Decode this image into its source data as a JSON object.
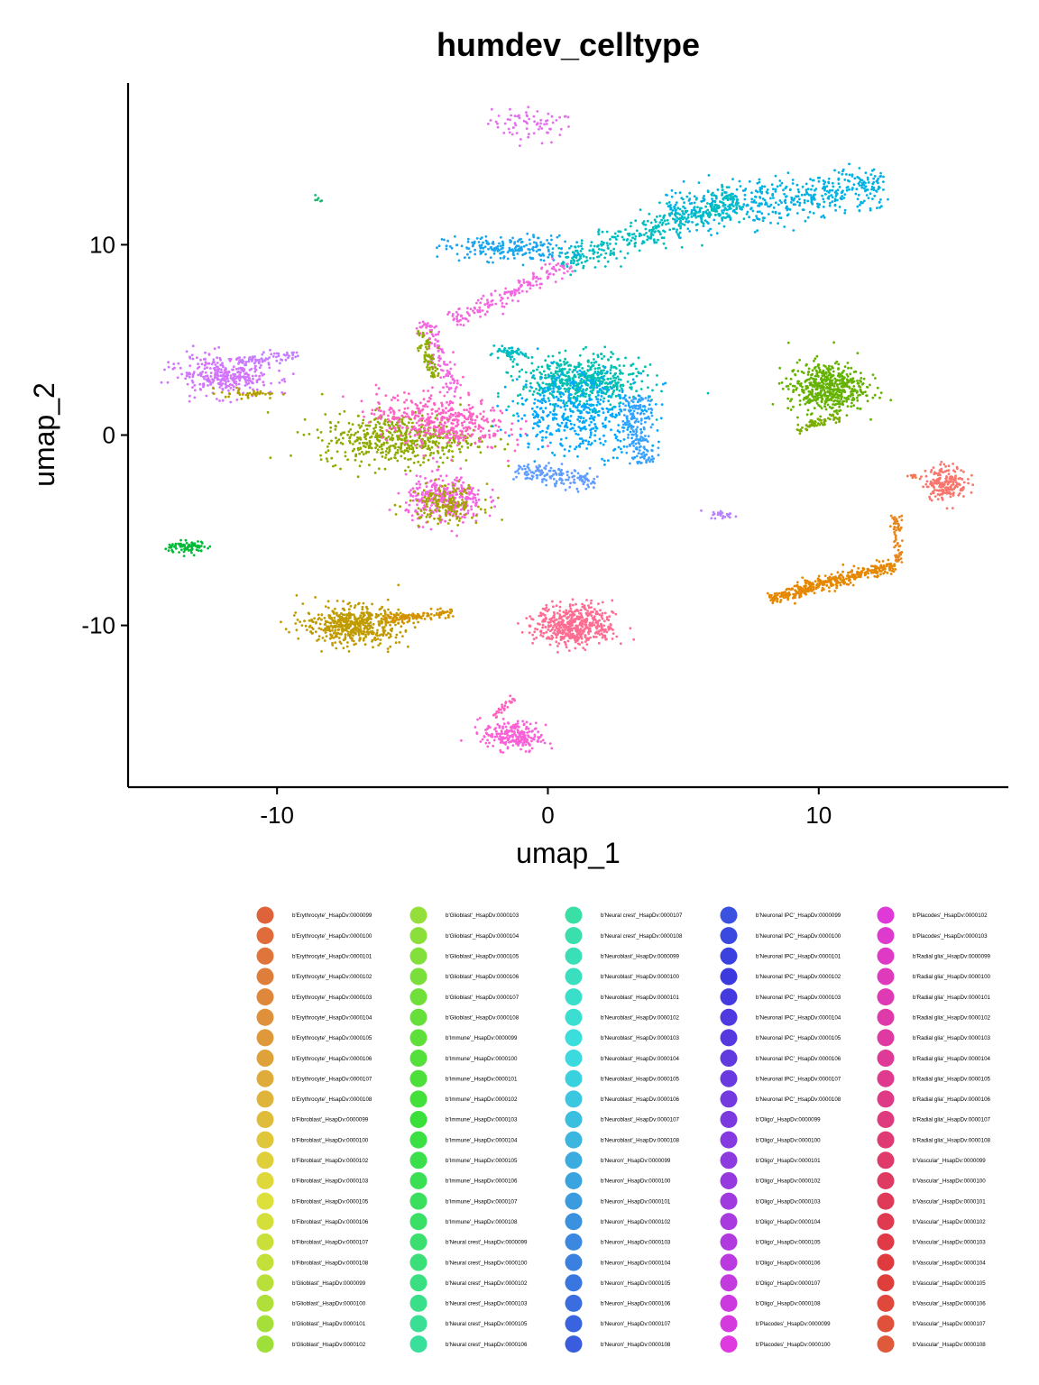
{
  "chart_data": {
    "type": "scatter",
    "title": "humdev_celltype",
    "xlabel": "umap_1",
    "ylabel": "umap_2",
    "xlim": [
      -15.5,
      17
    ],
    "ylim": [
      -18.5,
      18.5
    ],
    "x_ticks": [
      -10,
      0,
      10
    ],
    "x_tick_labels": [
      "-10",
      "0",
      "10"
    ],
    "y_ticks": [
      10,
      0,
      -10
    ],
    "y_tick_labels": [
      "10",
      "0",
      "-10"
    ],
    "grid": false,
    "legend_position": "bottom",
    "legend_columns": 5,
    "legend_rows": 22,
    "legend": [
      "b'Erythrocyte'_HsapDv:0000099",
      "b'Erythrocyte'_HsapDv:0000100",
      "b'Erythrocyte'_HsapDv:0000101",
      "b'Erythrocyte'_HsapDv:0000102",
      "b'Erythrocyte'_HsapDv:0000103",
      "b'Erythrocyte'_HsapDv:0000104",
      "b'Erythrocyte'_HsapDv:0000105",
      "b'Erythrocyte'_HsapDv:0000106",
      "b'Erythrocyte'_HsapDv:0000107",
      "b'Erythrocyte'_HsapDv:0000108",
      "b'Fibroblast'_HsapDv:0000099",
      "b'Fibroblast'_HsapDv:0000100",
      "b'Fibroblast'_HsapDv:0000102",
      "b'Fibroblast'_HsapDv:0000103",
      "b'Fibroblast'_HsapDv:0000105",
      "b'Fibroblast'_HsapDv:0000106",
      "b'Fibroblast'_HsapDv:0000107",
      "b'Fibroblast'_HsapDv:0000108",
      "b'Glioblast'_HsapDv:0000099",
      "b'Glioblast'_HsapDv:0000100",
      "b'Glioblast'_HsapDv:0000101",
      "b'Glioblast'_HsapDv:0000102",
      "b'Glioblast'_HsapDv:0000103",
      "b'Glioblast'_HsapDv:0000104",
      "b'Glioblast'_HsapDv:0000105",
      "b'Glioblast'_HsapDv:0000106",
      "b'Glioblast'_HsapDv:0000107",
      "b'Glioblast'_HsapDv:0000108",
      "b'Immune'_HsapDv:0000099",
      "b'Immune'_HsapDv:0000100",
      "b'Immune'_HsapDv:0000101",
      "b'Immune'_HsapDv:0000102",
      "b'Immune'_HsapDv:0000103",
      "b'Immune'_HsapDv:0000104",
      "b'Immune'_HsapDv:0000105",
      "b'Immune'_HsapDv:0000106",
      "b'Immune'_HsapDv:0000107",
      "b'Immune'_HsapDv:0000108",
      "b'Neural crest'_HsapDv:0000099",
      "b'Neural crest'_HsapDv:0000100",
      "b'Neural crest'_HsapDv:0000102",
      "b'Neural crest'_HsapDv:0000103",
      "b'Neural crest'_HsapDv:0000105",
      "b'Neural crest'_HsapDv:0000106",
      "b'Neural crest'_HsapDv:0000107",
      "b'Neural crest'_HsapDv:0000108",
      "b'Neuroblast'_HsapDv:0000099",
      "b'Neuroblast'_HsapDv:0000100",
      "b'Neuroblast'_HsapDv:0000101",
      "b'Neuroblast'_HsapDv:0000102",
      "b'Neuroblast'_HsapDv:0000103",
      "b'Neuroblast'_HsapDv:0000104",
      "b'Neuroblast'_HsapDv:0000105",
      "b'Neuroblast'_HsapDv:0000106",
      "b'Neuroblast'_HsapDv:0000107",
      "b'Neuroblast'_HsapDv:0000108",
      "b'Neuron'_HsapDv:0000099",
      "b'Neuron'_HsapDv:0000100",
      "b'Neuron'_HsapDv:0000101",
      "b'Neuron'_HsapDv:0000102",
      "b'Neuron'_HsapDv:0000103",
      "b'Neuron'_HsapDv:0000104",
      "b'Neuron'_HsapDv:0000105",
      "b'Neuron'_HsapDv:0000106",
      "b'Neuron'_HsapDv:0000107",
      "b'Neuron'_HsapDv:0000108",
      "b'Neuronal IPC'_HsapDv:0000099",
      "b'Neuronal IPC'_HsapDv:0000100",
      "b'Neuronal IPC'_HsapDv:0000101",
      "b'Neuronal IPC'_HsapDv:0000102",
      "b'Neuronal IPC'_HsapDv:0000103",
      "b'Neuronal IPC'_HsapDv:0000104",
      "b'Neuronal IPC'_HsapDv:0000105",
      "b'Neuronal IPC'_HsapDv:0000106",
      "b'Neuronal IPC'_HsapDv:0000107",
      "b'Neuronal IPC'_HsapDv:0000108",
      "b'Oligo'_HsapDv:0000099",
      "b'Oligo'_HsapDv:0000100",
      "b'Oligo'_HsapDv:0000101",
      "b'Oligo'_HsapDv:0000102",
      "b'Oligo'_HsapDv:0000103",
      "b'Oligo'_HsapDv:0000104",
      "b'Oligo'_HsapDv:0000105",
      "b'Oligo'_HsapDv:0000106",
      "b'Oligo'_HsapDv:0000107",
      "b'Oligo'_HsapDv:0000108",
      "b'Placodes'_HsapDv:0000099",
      "b'Placodes'_HsapDv:0000100",
      "b'Placodes'_HsapDv:0000102",
      "b'Placodes'_HsapDv:0000103",
      "b'Radial glia'_HsapDv:0000099",
      "b'Radial glia'_HsapDv:0000100",
      "b'Radial glia'_HsapDv:0000101",
      "b'Radial glia'_HsapDv:0000102",
      "b'Radial glia'_HsapDv:0000103",
      "b'Radial glia'_HsapDv:0000104",
      "b'Radial glia'_HsapDv:0000105",
      "b'Radial glia'_HsapDv:0000106",
      "b'Radial glia'_HsapDv:0000107",
      "b'Radial glia'_HsapDv:0000108",
      "b'Vascular'_HsapDv:0000099",
      "b'Vascular'_HsapDv:0000100",
      "b'Vascular'_HsapDv:0000101",
      "b'Vascular'_HsapDv:0000102",
      "b'Vascular'_HsapDv:0000103",
      "b'Vascular'_HsapDv:0000104",
      "b'Vascular'_HsapDv:0000105",
      "b'Vascular'_HsapDv:0000106",
      "b'Vascular'_HsapDv:0000107",
      "b'Vascular'_HsapDv:0000108"
    ],
    "clusters": [
      {
        "id": "placodes-top",
        "color": "#E36FEC",
        "shape": "ellipse",
        "center": [
          -0.6,
          16.3
        ],
        "spread": [
          1.4,
          0.8
        ],
        "angle": -10,
        "weight": 70
      },
      {
        "id": "tiny-top-left",
        "color": "#1DB870",
        "shape": "ellipse",
        "center": [
          -8.5,
          12.4
        ],
        "spread": [
          0.25,
          0.15
        ],
        "angle": 0,
        "weight": 6
      },
      {
        "id": "neuron-upper-band",
        "color": "#00B2E4",
        "shape": "segment",
        "from": [
          4.5,
          11.5
        ],
        "to": [
          12.5,
          13.2
        ],
        "width": 1.4,
        "weight": 520
      },
      {
        "id": "neuroblast-upper-band",
        "color": "#00BDC0",
        "shape": "segment",
        "from": [
          0.5,
          9.0
        ],
        "to": [
          7.0,
          12.5
        ],
        "width": 1.0,
        "weight": 380
      },
      {
        "id": "neuron-upper-left",
        "color": "#19A6EE",
        "shape": "ellipse",
        "center": [
          -1.5,
          9.8
        ],
        "spread": [
          2.1,
          0.6
        ],
        "angle": 0,
        "weight": 210
      },
      {
        "id": "radial-upper-arm",
        "color": "#F367E0",
        "shape": "segment",
        "from": [
          -3.5,
          6.0
        ],
        "to": [
          0.8,
          9.0
        ],
        "width": 0.6,
        "weight": 170
      },
      {
        "id": "radial-arm-down",
        "color": "#F367E0",
        "shape": "segment",
        "from": [
          -4.5,
          6.0
        ],
        "to": [
          -3.5,
          2.2
        ],
        "width": 0.5,
        "weight": 110
      },
      {
        "id": "glioblast-arm",
        "color": "#8EAB00",
        "shape": "segment",
        "from": [
          -4.7,
          5.5
        ],
        "to": [
          -4.2,
          3.0
        ],
        "width": 0.35,
        "weight": 70
      },
      {
        "id": "oligo-left-blob",
        "color": "#D275FC",
        "shape": "ellipse",
        "center": [
          -12.0,
          3.1
        ],
        "spread": [
          1.6,
          0.9
        ],
        "angle": -8,
        "weight": 320
      },
      {
        "id": "oligo-left-spur",
        "color": "#C77CFF",
        "shape": "segment",
        "from": [
          -11.5,
          3.8
        ],
        "to": [
          -9.2,
          4.2
        ],
        "width": 0.35,
        "weight": 70
      },
      {
        "id": "glioblast-left-edge",
        "color": "#B3A000",
        "shape": "ellipse",
        "center": [
          -11.0,
          2.2
        ],
        "spread": [
          1.0,
          0.25
        ],
        "angle": 0,
        "weight": 40
      },
      {
        "id": "glioblast-center",
        "color": "#8EAB00",
        "shape": "ellipse",
        "center": [
          -5.5,
          -0.2
        ],
        "spread": [
          2.6,
          1.2
        ],
        "angle": 0,
        "weight": 520
      },
      {
        "id": "radial-center",
        "color": "#FF61C6",
        "shape": "ellipse",
        "center": [
          -4.0,
          0.8
        ],
        "spread": [
          2.3,
          1.2
        ],
        "angle": -10,
        "weight": 420
      },
      {
        "id": "radial-lower",
        "color": "#F763E0",
        "shape": "ellipse",
        "center": [
          -3.8,
          -3.4
        ],
        "spread": [
          1.3,
          1.1
        ],
        "angle": 0,
        "weight": 330
      },
      {
        "id": "glioblast-lower",
        "color": "#A3A500",
        "shape": "ellipse",
        "center": [
          -3.8,
          -3.6
        ],
        "spread": [
          1.2,
          0.9
        ],
        "angle": 0,
        "weight": 170
      },
      {
        "id": "neuroblast-center",
        "color": "#00C0AF",
        "shape": "ellipse",
        "center": [
          1.2,
          2.8
        ],
        "spread": [
          2.0,
          1.2
        ],
        "angle": 0,
        "weight": 560
      },
      {
        "id": "neuron-center",
        "color": "#00A9FF",
        "shape": "ellipse",
        "center": [
          1.2,
          1.2
        ],
        "spread": [
          2.3,
          2.0
        ],
        "angle": 0,
        "weight": 460
      },
      {
        "id": "neuroblast-top-nub",
        "color": "#00BFC4",
        "shape": "ellipse",
        "center": [
          -1.5,
          4.3
        ],
        "spread": [
          0.6,
          0.25
        ],
        "angle": 0,
        "weight": 60
      },
      {
        "id": "neuron-right-arm",
        "color": "#35A2FF",
        "shape": "segment",
        "from": [
          3.2,
          2.0
        ],
        "to": [
          3.5,
          -1.5
        ],
        "width": 0.7,
        "weight": 180
      },
      {
        "id": "neuron-lower-arm",
        "color": "#619CFF",
        "shape": "segment",
        "from": [
          -1.2,
          -1.8
        ],
        "to": [
          1.8,
          -2.5
        ],
        "width": 0.6,
        "weight": 150
      },
      {
        "id": "oligo-small",
        "color": "#B983FF",
        "shape": "ellipse",
        "center": [
          6.5,
          -4.2
        ],
        "spread": [
          0.45,
          0.2
        ],
        "angle": 0,
        "weight": 25
      },
      {
        "id": "immune-right",
        "color": "#64B200",
        "shape": "ellipse",
        "center": [
          10.3,
          2.5
        ],
        "spread": [
          1.3,
          1.2
        ],
        "angle": 0,
        "weight": 520
      },
      {
        "id": "immune-right-tail",
        "color": "#7CAE00",
        "shape": "segment",
        "from": [
          9.2,
          0.2
        ],
        "to": [
          10.8,
          1.0
        ],
        "width": 0.3,
        "weight": 60
      },
      {
        "id": "erythrocyte-right",
        "color": "#F8766D",
        "shape": "ellipse",
        "center": [
          14.7,
          -2.5
        ],
        "spread": [
          0.7,
          0.8
        ],
        "angle": 0,
        "weight": 200
      },
      {
        "id": "erythrocyte-right-tail",
        "color": "#F0784C",
        "shape": "segment",
        "from": [
          13.3,
          -2.1
        ],
        "to": [
          13.8,
          -2.3
        ],
        "width": 0.12,
        "weight": 8
      },
      {
        "id": "fibroblast-right-band",
        "color": "#E58700",
        "shape": "segment",
        "from": [
          8.2,
          -8.6
        ],
        "to": [
          12.8,
          -6.8
        ],
        "width": 0.45,
        "weight": 380
      },
      {
        "id": "fibroblast-right-hook",
        "color": "#E7851E",
        "shape": "segment",
        "from": [
          12.9,
          -6.7
        ],
        "to": [
          12.9,
          -4.2
        ],
        "width": 0.28,
        "weight": 70
      },
      {
        "id": "immune-left",
        "color": "#00BA38",
        "shape": "ellipse",
        "center": [
          -13.3,
          -5.9
        ],
        "spread": [
          0.7,
          0.3
        ],
        "angle": 0,
        "weight": 80
      },
      {
        "id": "fibroblast-lower-left",
        "color": "#C09B00",
        "shape": "ellipse",
        "center": [
          -7.2,
          -10.0
        ],
        "spread": [
          1.6,
          0.9
        ],
        "angle": 0,
        "weight": 520
      },
      {
        "id": "fibroblast-lower-arm",
        "color": "#D39200",
        "shape": "segment",
        "from": [
          -6.0,
          -9.7
        ],
        "to": [
          -3.5,
          -9.3
        ],
        "width": 0.3,
        "weight": 120
      },
      {
        "id": "vascular-lower-center",
        "color": "#FF6C91",
        "shape": "ellipse",
        "center": [
          1.0,
          -10.0
        ],
        "spread": [
          1.3,
          1.0
        ],
        "angle": 0,
        "weight": 520
      },
      {
        "id": "vascular-bottom",
        "color": "#FB61D7",
        "shape": "ellipse",
        "center": [
          -1.3,
          -15.8
        ],
        "spread": [
          1.0,
          0.7
        ],
        "angle": -10,
        "weight": 230
      },
      {
        "id": "vascular-bottom-spur",
        "color": "#FF62BC",
        "shape": "segment",
        "from": [
          -2.0,
          -14.8
        ],
        "to": [
          -1.2,
          -13.8
        ],
        "width": 0.2,
        "weight": 30
      }
    ]
  }
}
